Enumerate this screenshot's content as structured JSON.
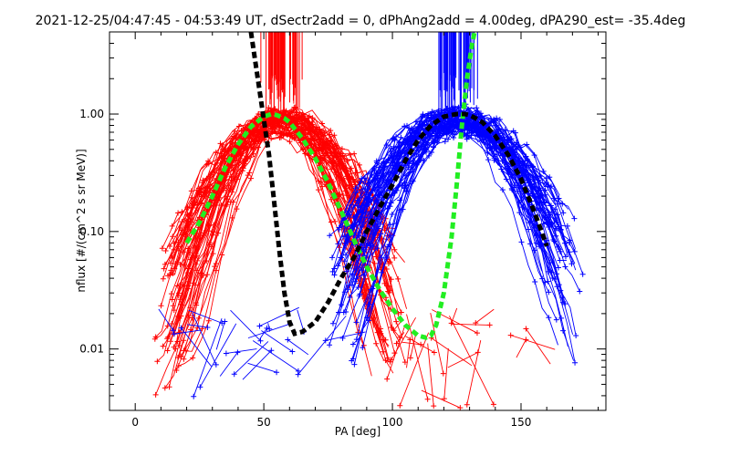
{
  "chart_data": {
    "type": "line",
    "title": "2021-12-25/04:47:45 - 04:53:49 UT, dSectr2add = 0, dPhAng2add = 4.00deg, dPA290_est= -35.4deg",
    "xlabel": "PA [deg]",
    "ylabel": "nflux [#/(cm^2 s sr MeV)]",
    "xlim": [
      -10,
      183
    ],
    "ylim": [
      0.003,
      5.0
    ],
    "y_scale": "log",
    "grid": false,
    "x_ticks": [
      0,
      50,
      100,
      150
    ],
    "x_tick_labels": [
      "0",
      "50",
      "100",
      "150"
    ],
    "y_ticks": [
      0.01,
      0.1,
      1.0
    ],
    "y_tick_labels": [
      "0.01",
      "0.10",
      "1.00"
    ],
    "series_colors": {
      "red": "#ff0000",
      "blue": "#0000ff",
      "black": "#000000",
      "green": "#22ee22"
    },
    "black_fit": {
      "x": [
        45,
        47,
        50,
        52,
        54,
        56,
        58,
        60,
        62,
        65,
        70,
        75,
        80,
        85,
        90,
        95,
        100,
        105,
        110,
        115,
        120,
        125,
        128,
        130,
        132,
        135,
        140,
        145,
        150,
        155,
        158,
        160
      ],
      "y": [
        5.0,
        2.5,
        0.9,
        0.45,
        0.18,
        0.07,
        0.03,
        0.017,
        0.0135,
        0.014,
        0.017,
        0.025,
        0.04,
        0.06,
        0.1,
        0.16,
        0.25,
        0.4,
        0.6,
        0.8,
        0.95,
        1.0,
        1.0,
        0.98,
        0.93,
        0.85,
        0.65,
        0.45,
        0.28,
        0.15,
        0.1,
        0.075
      ]
    },
    "green_fit": {
      "x": [
        20,
        25,
        30,
        35,
        40,
        45,
        50,
        53,
        55,
        58,
        60,
        65,
        70,
        75,
        80,
        85,
        90,
        95,
        100,
        105,
        110,
        113,
        115,
        117,
        120,
        123,
        125,
        127,
        129,
        131,
        132
      ],
      "y": [
        0.08,
        0.12,
        0.2,
        0.35,
        0.55,
        0.78,
        0.95,
        1.0,
        0.98,
        0.92,
        0.85,
        0.62,
        0.42,
        0.26,
        0.15,
        0.085,
        0.05,
        0.032,
        0.022,
        0.016,
        0.013,
        0.0125,
        0.013,
        0.016,
        0.03,
        0.09,
        0.25,
        0.8,
        2.0,
        4.0,
        5.0
      ]
    },
    "red_peak_center": 57,
    "blue_peak_center": 125
  }
}
